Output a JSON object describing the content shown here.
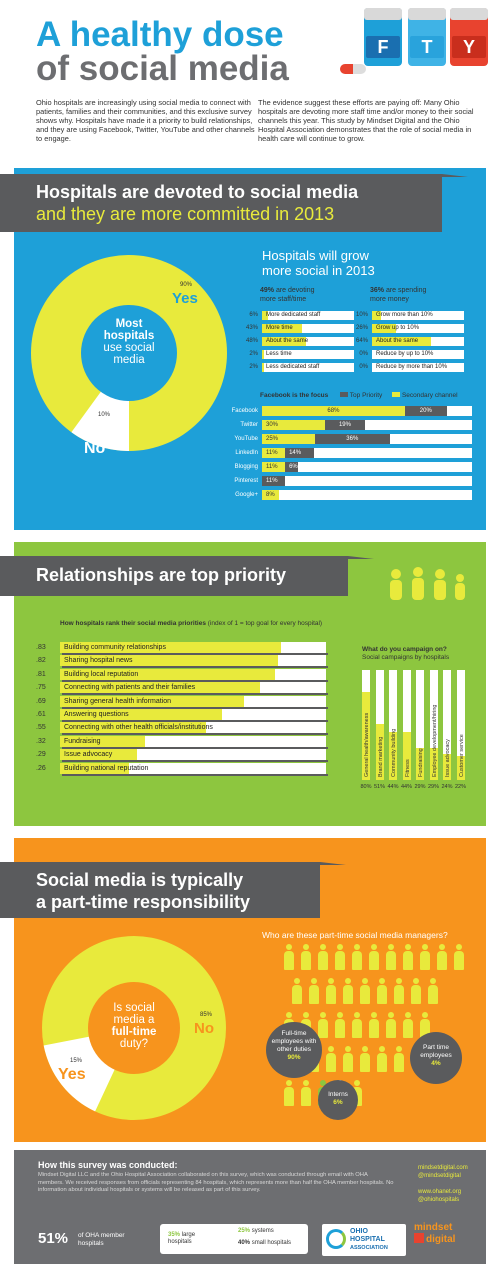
{
  "header": {
    "title_line1": "A healthy dose",
    "title_line2": "of social media",
    "bottles": [
      "F",
      "T",
      "Y"
    ],
    "intro_left": "Ohio hospitals are increasingly using social media to connect with patients, families and their communities, and this exclusive survey shows why. Hospitals have made it a priority to build relationships, and they are using Facebook, Twitter, YouTube and other channels to engage.",
    "intro_right": "The evidence suggest these efforts are paying off: Many Ohio hospitals are devoting more staff time and/or money to their social channels this year. This study by Mindset Digital and the Ohio Hospital Association demonstrates that the role of social media in health care will continue to grow."
  },
  "section1": {
    "title_line1": "Hospitals are devoted to social media",
    "title_line2": "and they are more committed in 2013",
    "donut": {
      "center": [
        "Most",
        "hospitals",
        "use social",
        "media"
      ],
      "yes_pct": "90%",
      "yes": "Yes",
      "no_pct": "10%",
      "no": "No"
    },
    "grow_title": [
      "Hospitals will grow",
      "more social in 2013"
    ],
    "staff_head": {
      "pct": "49%",
      "rest": " are devoting",
      "line2": "more staff/time"
    },
    "money_head": {
      "pct": "36%",
      "rest": " are spending",
      "line2": "more money"
    },
    "staff": [
      {
        "pct": "6%",
        "label": "More dedicated staff",
        "v": 6
      },
      {
        "pct": "43%",
        "label": "More time",
        "v": 43
      },
      {
        "pct": "48%",
        "label": "About the same",
        "v": 48
      },
      {
        "pct": "2%",
        "label": "Less time",
        "v": 2
      },
      {
        "pct": "2%",
        "label": "Less dedicated staff",
        "v": 2
      }
    ],
    "money": [
      {
        "pct": "10%",
        "label": "Grow more than 10%",
        "v": 10
      },
      {
        "pct": "26%",
        "label": "Grow up to 10%",
        "v": 26
      },
      {
        "pct": "64%",
        "label": "About the same",
        "v": 64
      },
      {
        "pct": "0%",
        "label": "Reduce by up to 10%",
        "v": 0
      },
      {
        "pct": "0%",
        "label": "Reduce by more than 10%",
        "v": 0
      }
    ],
    "channels_head": "Facebook is the focus",
    "legend_top": "Top Priority",
    "legend_secondary": "Secondary channel"
  },
  "chart_data": [
    {
      "type": "bar",
      "title": "Facebook is the focus",
      "categories": [
        "Facebook",
        "Twitter",
        "YouTube",
        "LinkedIn",
        "Blogging",
        "Pinterest",
        "Google+"
      ],
      "series": [
        {
          "name": "Top Priority",
          "values": [
            68,
            30,
            25,
            11,
            11,
            null,
            8
          ]
        },
        {
          "name": "Secondary channel",
          "values": [
            20,
            19,
            36,
            14,
            6,
            11,
            null
          ]
        }
      ],
      "labels_top": [
        "68%",
        "30%",
        "25%",
        "11%",
        "11%",
        "",
        "8%"
      ],
      "labels_sec": [
        "20%",
        "19%",
        "36%",
        "14%",
        "6%",
        "11%",
        ""
      ]
    },
    {
      "type": "bar",
      "title": "How hospitals rank their social media priorities",
      "categories": [
        "Building community relationships",
        "Sharing hospital news",
        "Building local reputation",
        "Connecting with patients and their families",
        "Sharing general health information",
        "Answering questions",
        "Connecting with other health officials/institutions",
        "Fundraising",
        "Issue advocacy",
        "Building national reputation"
      ],
      "values": [
        0.83,
        0.82,
        0.81,
        0.75,
        0.69,
        0.61,
        0.55,
        0.32,
        0.29,
        0.26
      ],
      "value_labels": [
        ".83",
        ".82",
        ".81",
        ".75",
        ".69",
        ".61",
        ".55",
        ".32",
        ".29",
        ".26"
      ]
    },
    {
      "type": "bar",
      "title": "What do you campaign on?",
      "subtitle": "Social campaigns by hospitals",
      "categories": [
        "General health/awareness",
        "Brand marketing",
        "Community building",
        "Fitness",
        "Fundraising",
        "Employee development/hiring",
        "Issue advocacy",
        "Customer service"
      ],
      "values": [
        80,
        51,
        44,
        44,
        29,
        29,
        24,
        22
      ],
      "value_labels": [
        "80%",
        "51%",
        "44%",
        "44%",
        "29%",
        "29%",
        "24%",
        "22%"
      ]
    }
  ],
  "section2": {
    "title": "Relationships are top priority",
    "rank_title_bold": "How hospitals rank their social media priorities",
    "rank_title_rest": " (index of 1 = top goal for every hospital)",
    "campaign_title": "What do you campaign on?",
    "campaign_sub": "Social campaigns by hospitals"
  },
  "section3": {
    "title_line1": "Social media is typically",
    "title_line2": "a part-time responsibility",
    "donut": {
      "center": [
        "Is social",
        "media a",
        "full-time",
        "duty?"
      ],
      "no_pct": "85%",
      "no": "No",
      "yes_pct": "15%",
      "yes": "Yes"
    },
    "who_title": "Who are these part-time social media managers?",
    "fulltime": [
      "Full-time",
      "employees with",
      "other duties",
      "90%"
    ],
    "parttime": [
      "Part time",
      "employees",
      "4%"
    ],
    "interns": [
      "Interns",
      "6%"
    ]
  },
  "footer": {
    "title": "How this survey was conducted:",
    "text": "Mindset Digital LLC and the Ohio Hospital Association collaborated on this survey, which was conducted through email with OHA members. We received responses from officials representing 84 hospitals, which represents more than half the OHA member hospitals. No information about individual hospitals or systems will be released as part of this survey.",
    "links": [
      "mindsetdigital.com",
      "@mindsetdigital",
      "www.ohanet.org",
      "@ohiohospitals"
    ],
    "stat_pct": "51%",
    "stat_text": [
      "of OHA member",
      "hospitals"
    ],
    "large": {
      "pct": "35%",
      "label": "large",
      "label2": "hospitals"
    },
    "systems": {
      "pct": "25%",
      "label": "systems"
    },
    "small": {
      "pct": "40%",
      "label": "small hospitals"
    },
    "oha_logo": [
      "OHIO",
      "HOSPITAL",
      "ASSOCIATION"
    ],
    "md_logo": [
      "mindset",
      "digital"
    ]
  },
  "colors": {
    "blue": "#1ea0d8",
    "yellow": "#e8ea3c",
    "green": "#8dc63f",
    "orange": "#f7941d",
    "gray": "#5a5b5d",
    "red": "#e8432f"
  }
}
